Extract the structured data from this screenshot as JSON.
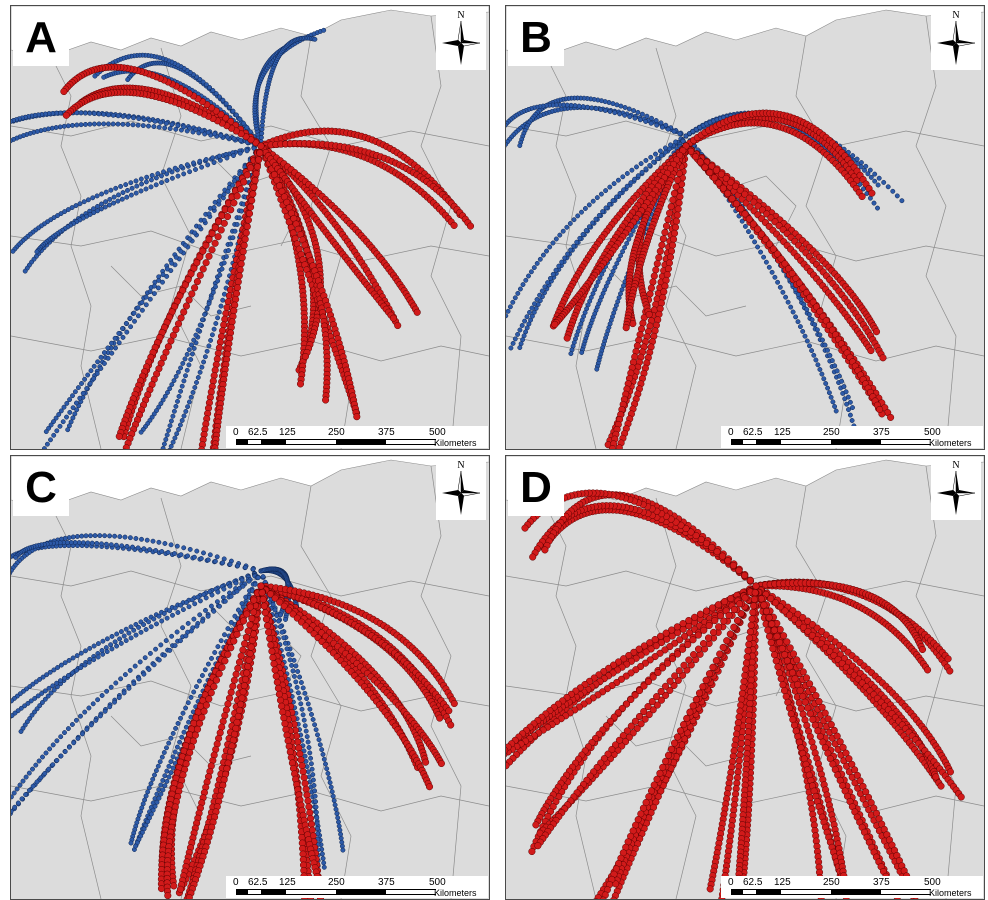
{
  "panels": [
    {
      "id": "A",
      "label": "A"
    },
    {
      "id": "B",
      "label": "B"
    },
    {
      "id": "C",
      "label": "C"
    },
    {
      "id": "D",
      "label": "D"
    }
  ],
  "north_arrow": {
    "letter": "N"
  },
  "scale_bar": {
    "ticks": [
      "0",
      "62.5",
      "125",
      "250",
      "375",
      "500"
    ],
    "units": "Kilometers"
  },
  "colors": {
    "land": "#dcdcdc",
    "sea": "#ffffff",
    "border": "#8c8c8c",
    "trajectory_red": "#d11a1a",
    "trajectory_red_edge": "#5a0000",
    "trajectory_blue": "#2d5aa8",
    "trajectory_blue_edge": "#0e2550"
  }
}
